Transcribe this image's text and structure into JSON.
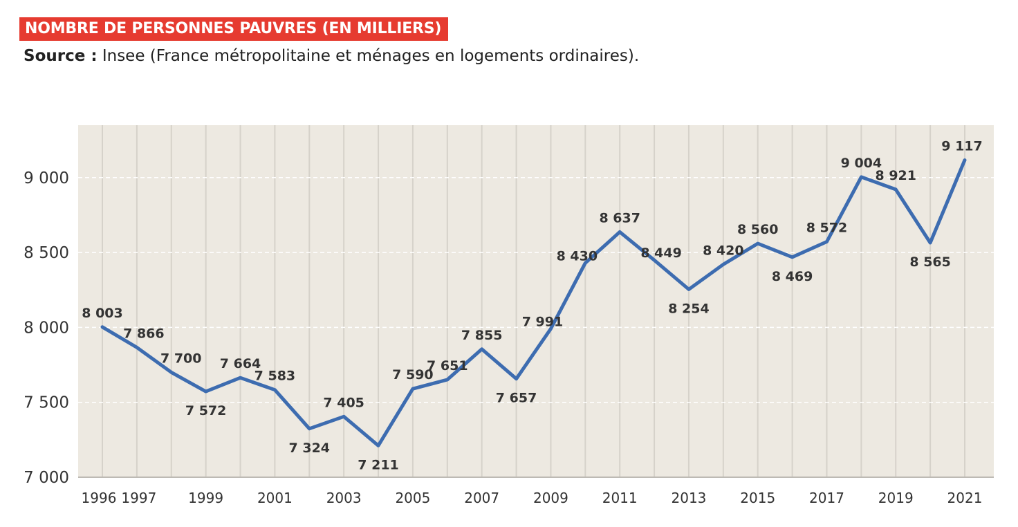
{
  "header": {
    "title": "NOMBRE DE PERSONNES PAUVRES (EN MILLIERS)",
    "source_label": "Source :",
    "source_text": "Insee (France métropolitaine et ménages en logements ordinaires)."
  },
  "colors": {
    "title_bg": "#e63b30",
    "plot_bg": "#ede9e1",
    "line": "#3d6cb0",
    "vgrid": "#d6d2ca",
    "hgrid": "#ffffff"
  },
  "chart_data": {
    "type": "line",
    "title": "NOMBRE DE PERSONNES PAUVRES (EN MILLIERS)",
    "xlabel": "",
    "ylabel": "",
    "ylim": [
      7000,
      9350
    ],
    "yticks": [
      7000,
      7500,
      8000,
      8500,
      9000
    ],
    "ytick_labels": [
      "7 000",
      "7 500",
      "8 000",
      "8 500",
      "9 000"
    ],
    "x": [
      1996,
      1997,
      1998,
      1999,
      2000,
      2001,
      2002,
      2003,
      2004,
      2005,
      2006,
      2007,
      2008,
      2009,
      2010,
      2011,
      2012,
      2013,
      2014,
      2015,
      2016,
      2017,
      2018,
      2019,
      2020,
      2021
    ],
    "xtick_labels": [
      "1996",
      "1997",
      "",
      "1999",
      "",
      "2001",
      "",
      "2003",
      "",
      "2005",
      "",
      "2007",
      "",
      "2009",
      "",
      "2011",
      "",
      "2013",
      "",
      "2015",
      "",
      "2017",
      "",
      "2019",
      "",
      "2021"
    ],
    "series": [
      {
        "values": [
          8003,
          7866,
          7700,
          7572,
          7664,
          7583,
          7324,
          7405,
          7211,
          7590,
          7651,
          7855,
          7657,
          7991,
          8430,
          8637,
          8449,
          8254,
          8420,
          8560,
          8469,
          8572,
          9004,
          8921,
          8565,
          9117
        ],
        "labels": [
          "8 003",
          "7 866",
          "7 700",
          "7 572",
          "7 664",
          "7 583",
          "7 324",
          "7 405",
          "7 211",
          "7 590",
          "7 651",
          "7 855",
          "7 657",
          "7 991",
          "8 430",
          "8 637",
          "8 449",
          "8 254",
          "8 420",
          "8 560",
          "8 469",
          "8 572",
          "9 004",
          "8 921",
          "8 565",
          "9 117"
        ]
      }
    ],
    "grid": true
  }
}
